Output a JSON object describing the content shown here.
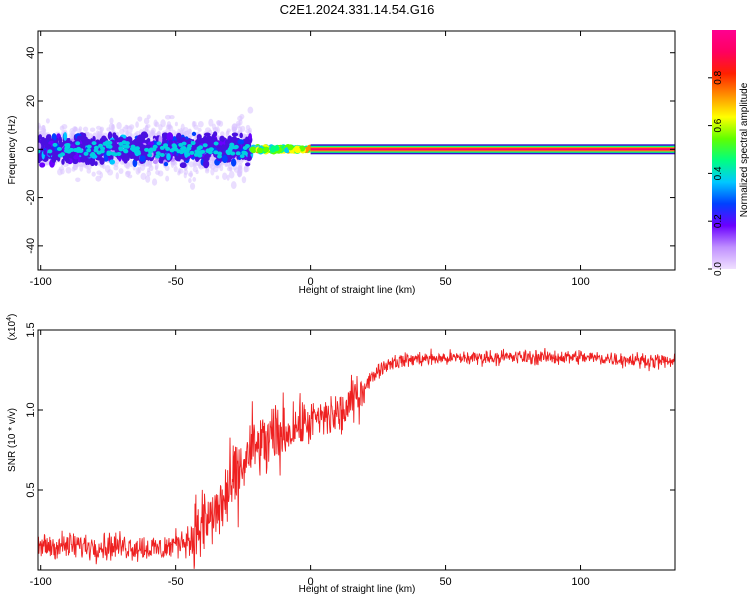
{
  "title": "C2E1.2024.331.14.54.G16",
  "chart_data": [
    {
      "type": "heatmap",
      "xlabel": "Height of straight line (km)",
      "ylabel": "Frequency (Hz)",
      "xlim": [
        -101,
        135
      ],
      "ylim": [
        -50,
        49
      ],
      "x_ticks": [
        -100,
        -50,
        0,
        50,
        100
      ],
      "y_ticks": [
        -40,
        -20,
        0,
        20,
        40
      ],
      "x_tick_labels": [
        "-100",
        "-50",
        "0",
        "50",
        "100"
      ],
      "y_tick_labels": [
        "-40",
        "-20",
        "0",
        "20",
        "40"
      ],
      "colorbar": {
        "label": "Normalized spectral amplitude",
        "range": [
          0,
          1
        ],
        "ticks": [
          0.0,
          0.2,
          0.4,
          0.6,
          0.8
        ],
        "tick_labels": [
          "0.0",
          "0.2",
          "0.4",
          "0.6",
          "0.8"
        ],
        "colors": [
          "#f0e0ff",
          "#c090ff",
          "#6a00ff",
          "#0040ff",
          "#00c8ff",
          "#00ff80",
          "#60ff00",
          "#ffff00",
          "#ff9000",
          "#ff2000",
          "#ff0060",
          "#ff0090"
        ]
      },
      "regions": [
        {
          "x": [
            -101,
            -22
          ],
          "freq_center": 0,
          "freq_spread": 8,
          "amplitude": [
            0.1,
            0.35
          ],
          "note_color": "#4a10e0"
        },
        {
          "x": [
            -22,
            0
          ],
          "freq_center": 0,
          "freq_spread": 1.2,
          "amplitude": [
            0.35,
            0.7
          ]
        },
        {
          "x": [
            0,
            135
          ],
          "freq_center": 0,
          "freq_spread": 1,
          "amplitude": [
            0.7,
            1.0
          ]
        }
      ]
    },
    {
      "type": "line",
      "ylabel": "SNR (10 * v/v)",
      "xlabel": "Height of straight line (km)",
      "multiplier_label": "(x10",
      "multiplier_exp": "4",
      "multiplier_close": ")",
      "xlim": [
        -101,
        135
      ],
      "ylim": [
        0,
        1.5
      ],
      "x_ticks": [
        -100,
        -50,
        0,
        50,
        100
      ],
      "y_ticks": [
        0.5,
        1.0,
        1.5
      ],
      "x_tick_labels": [
        "-100",
        "-50",
        "0",
        "50",
        "100"
      ],
      "y_tick_labels": [
        "0.5",
        "1.0",
        "1.5"
      ],
      "color": "#ee2020",
      "series_profile": [
        {
          "x": -101,
          "y": 0.15
        },
        {
          "x": -70,
          "y": 0.15
        },
        {
          "x": -55,
          "y": 0.13
        },
        {
          "x": -45,
          "y": 0.2
        },
        {
          "x": -35,
          "y": 0.35
        },
        {
          "x": -28,
          "y": 0.55
        },
        {
          "x": -22,
          "y": 0.75
        },
        {
          "x": -15,
          "y": 0.8
        },
        {
          "x": -5,
          "y": 0.9
        },
        {
          "x": 5,
          "y": 0.95
        },
        {
          "x": 12,
          "y": 0.98
        },
        {
          "x": 20,
          "y": 1.15
        },
        {
          "x": 25,
          "y": 1.25
        },
        {
          "x": 30,
          "y": 1.3
        },
        {
          "x": 40,
          "y": 1.32
        },
        {
          "x": 70,
          "y": 1.33
        },
        {
          "x": 100,
          "y": 1.33
        },
        {
          "x": 135,
          "y": 1.3
        }
      ]
    }
  ]
}
